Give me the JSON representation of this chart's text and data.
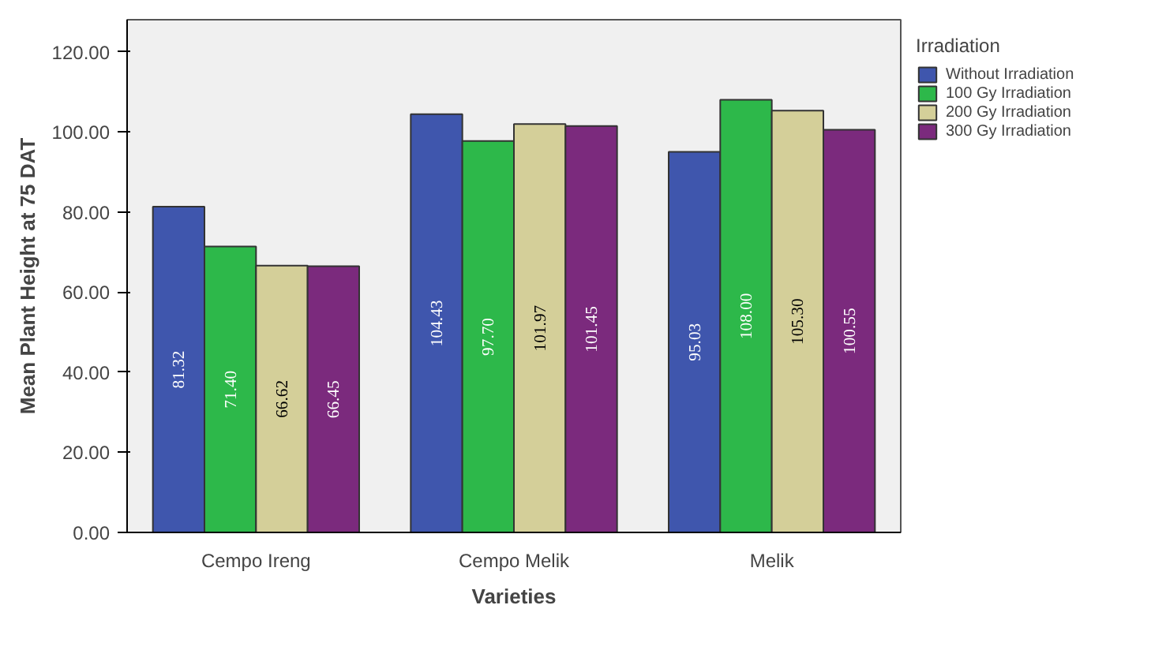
{
  "chart_data": {
    "type": "bar",
    "xlabel": "Varieties",
    "ylabel": "Mean Plant Height at 75 DAT",
    "legend_title": "Irradiation",
    "categories": [
      "Cempo Ireng",
      "Cempo Melik",
      "Melik"
    ],
    "series": [
      {
        "name": "Without Irradiation",
        "color": "#3f56ad",
        "values": [
          81.32,
          104.43,
          95.03
        ],
        "value_labels": [
          "81.32",
          "104.43",
          "95.03"
        ]
      },
      {
        "name": "100 Gy Irradiation",
        "color": "#2db84a",
        "values": [
          71.4,
          97.7,
          108.0
        ],
        "value_labels": [
          "71.40",
          "97.70",
          "108.00"
        ]
      },
      {
        "name": "200 Gy Irradiation",
        "color": "#d4cf99",
        "values": [
          66.62,
          101.97,
          105.3
        ],
        "value_labels": [
          "66.62",
          "101.97",
          "105.30"
        ]
      },
      {
        "name": "300 Gy Irradiation",
        "color": "#7b2a7d",
        "values": [
          66.45,
          101.45,
          100.55
        ],
        "value_labels": [
          "66.45",
          "101.45",
          "100.55"
        ]
      }
    ],
    "ylim": [
      0,
      128
    ],
    "yticks": [
      {
        "value": 0,
        "label": "0.00"
      },
      {
        "value": 20,
        "label": "20.00"
      },
      {
        "value": 40,
        "label": "40.00"
      },
      {
        "value": 60,
        "label": "60.00"
      },
      {
        "value": 80,
        "label": "80.00"
      },
      {
        "value": 100,
        "label": "100.00"
      },
      {
        "value": 120,
        "label": "120.00"
      }
    ],
    "grid": false,
    "legend": "top right"
  }
}
